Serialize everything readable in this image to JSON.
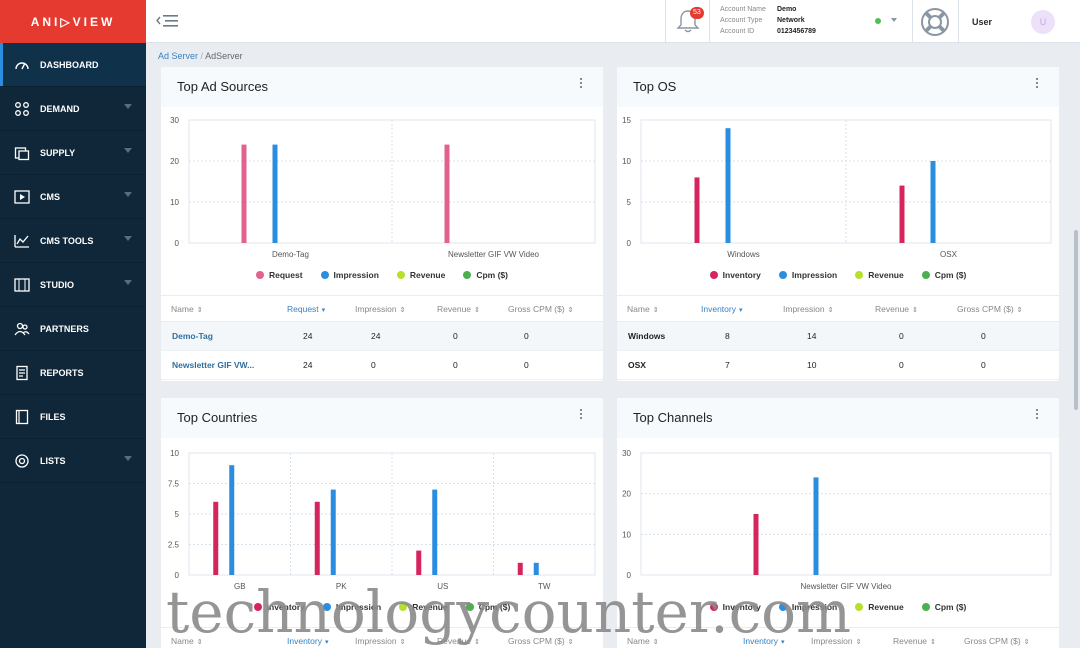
{
  "brand": {
    "logo_text": "ANI▷VIEW",
    "accent": "#e53a2f"
  },
  "sidebar": {
    "items": [
      {
        "label": "DASHBOARD",
        "icon": "dashboard-gauge-icon",
        "active": true,
        "has_caret": false
      },
      {
        "label": "DEMAND",
        "icon": "demand-grid-icon",
        "has_caret": true
      },
      {
        "label": "SUPPLY",
        "icon": "supply-stack-icon",
        "has_caret": true
      },
      {
        "label": "CMS",
        "icon": "cms-video-icon",
        "has_caret": true
      },
      {
        "label": "CMS TOOLS",
        "icon": "cms-tools-chart-icon",
        "has_caret": true
      },
      {
        "label": "STUDIO",
        "icon": "studio-film-icon",
        "has_caret": true
      },
      {
        "label": "PARTNERS",
        "icon": "partners-people-icon",
        "has_caret": false
      },
      {
        "label": "REPORTS",
        "icon": "reports-document-icon",
        "has_caret": false
      },
      {
        "label": "FILES",
        "icon": "files-film-icon",
        "has_caret": false
      },
      {
        "label": "LISTS",
        "icon": "lists-target-icon",
        "has_caret": true
      }
    ]
  },
  "topbar": {
    "notifications_count": "53",
    "account": {
      "name_label": "Account Name",
      "name_value": "Demo",
      "type_label": "Account Type",
      "type_value": "Network",
      "id_label": "Account ID",
      "id_value": "0123456789"
    },
    "user_label": "User",
    "avatar_initial": "U"
  },
  "breadcrumb": {
    "parent": "Ad Server",
    "separator": "/",
    "current": "AdServer"
  },
  "colors": {
    "pink": "#e1618f",
    "crimson": "#d6245d",
    "blue": "#2b8de0",
    "lime": "#b6e02a",
    "green": "#4caf50"
  },
  "cards": {
    "ad_sources": {
      "title": "Top Ad Sources",
      "legend": [
        "Request",
        "Impression",
        "Revenue",
        "Cpm ($)"
      ],
      "columns": [
        "Name",
        "Request",
        "Impression",
        "Revenue",
        "Gross CPM ($)"
      ],
      "rows": [
        [
          "Demo-Tag",
          "24",
          "24",
          "0",
          "0"
        ],
        [
          "Newsletter GIF VW...",
          "24",
          "0",
          "0",
          "0"
        ]
      ]
    },
    "os": {
      "title": "Top OS",
      "legend": [
        "Inventory",
        "Impression",
        "Revenue",
        "Cpm ($)"
      ],
      "columns": [
        "Name",
        "Inventory",
        "Impression",
        "Revenue",
        "Gross CPM ($)"
      ],
      "rows": [
        [
          "Windows",
          "8",
          "14",
          "0",
          "0"
        ],
        [
          "OSX",
          "7",
          "10",
          "0",
          "0"
        ]
      ]
    },
    "countries": {
      "title": "Top Countries",
      "legend": [
        "Inventory",
        "Impression",
        "Revenue",
        "Cpm ($)"
      ],
      "columns": [
        "Name",
        "Inventory",
        "Impression",
        "Revenue",
        "Gross CPM ($)"
      ]
    },
    "channels": {
      "title": "Top Channels",
      "legend": [
        "Inventory",
        "Impression",
        "Revenue",
        "Cpm ($)"
      ],
      "columns": [
        "Name",
        "Inventory",
        "Impression",
        "Revenue",
        "Gross CPM ($)"
      ]
    }
  },
  "chart_data": [
    {
      "type": "bar",
      "categories": [
        "Demo-Tag",
        "Newsletter GIF VW Video"
      ],
      "ylim": [
        0,
        30
      ],
      "yticks": [
        "0",
        "10",
        "20",
        "30"
      ],
      "series": [
        {
          "name": "Request",
          "values": [
            24,
            24
          ]
        },
        {
          "name": "Impression",
          "values": [
            24,
            0
          ]
        },
        {
          "name": "Revenue",
          "values": [
            0,
            0
          ]
        },
        {
          "name": "Cpm ($)",
          "values": [
            0,
            0
          ]
        }
      ]
    },
    {
      "type": "bar",
      "categories": [
        "Windows",
        "OSX"
      ],
      "ylim": [
        0,
        15
      ],
      "yticks": [
        "0",
        "5",
        "10",
        "15"
      ],
      "series": [
        {
          "name": "Inventory",
          "values": [
            8,
            7
          ]
        },
        {
          "name": "Impression",
          "values": [
            14,
            10
          ]
        },
        {
          "name": "Revenue",
          "values": [
            0,
            0
          ]
        },
        {
          "name": "Cpm ($)",
          "values": [
            0,
            0
          ]
        }
      ]
    },
    {
      "type": "bar",
      "categories": [
        "GB",
        "PK",
        "US",
        "TW"
      ],
      "ylim": [
        0,
        10
      ],
      "yticks": [
        "0",
        "2.5",
        "5",
        "7.5",
        "10"
      ],
      "series": [
        {
          "name": "Inventory",
          "values": [
            6,
            6,
            2,
            1
          ]
        },
        {
          "name": "Impression",
          "values": [
            9,
            7,
            7,
            1
          ]
        },
        {
          "name": "Revenue",
          "values": [
            0,
            0,
            0,
            0
          ]
        },
        {
          "name": "Cpm ($)",
          "values": [
            0,
            0,
            0,
            0
          ]
        }
      ]
    },
    {
      "type": "bar",
      "categories": [
        "Newsletter GIF VW Video"
      ],
      "ylim": [
        0,
        30
      ],
      "yticks": [
        "0",
        "10",
        "20",
        "30"
      ],
      "series": [
        {
          "name": "Inventory",
          "values": [
            15
          ]
        },
        {
          "name": "Impression",
          "values": [
            24
          ]
        },
        {
          "name": "Revenue",
          "values": [
            0
          ]
        },
        {
          "name": "Cpm ($)",
          "values": [
            0
          ]
        }
      ]
    }
  ],
  "watermark": "technologycounter.com"
}
